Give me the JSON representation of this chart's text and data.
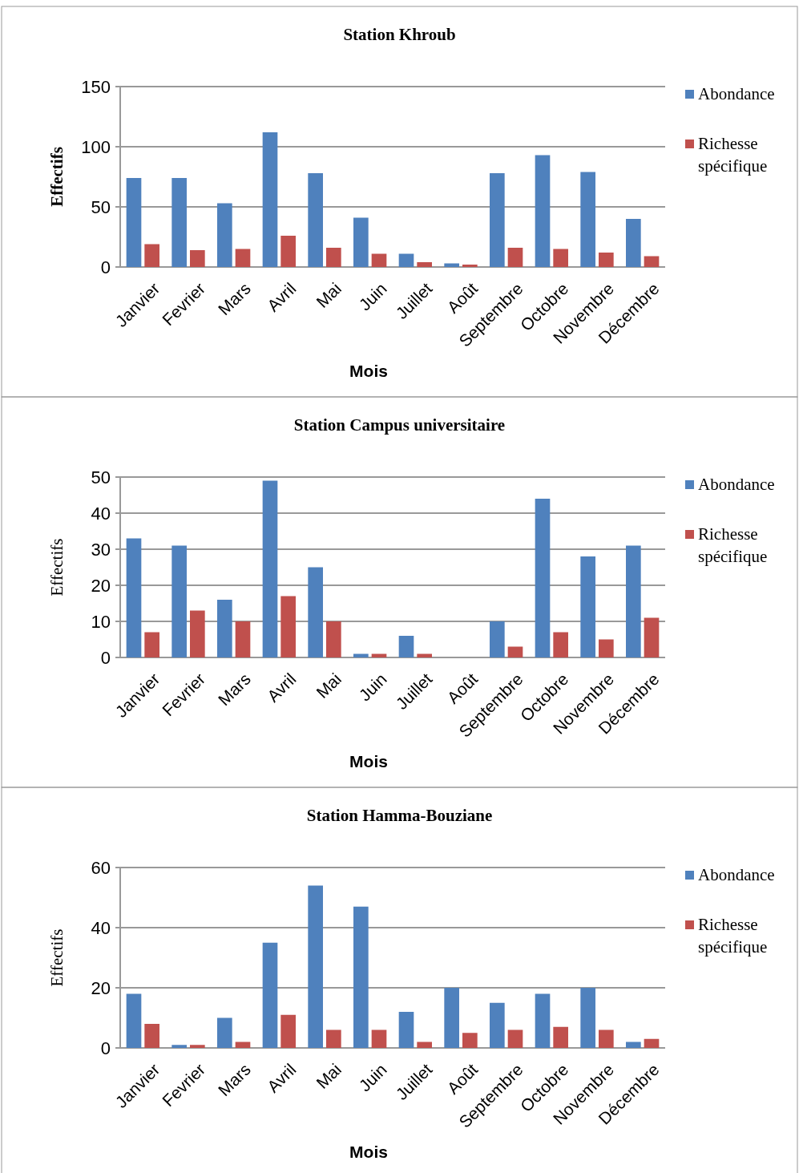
{
  "chart_data": [
    {
      "type": "bar",
      "title": "Station Khroub",
      "xlabel": "Mois",
      "ylabel": "Effectifs",
      "categories": [
        "Janvier",
        "Fevrier",
        "Mars",
        "Avril",
        "Mai",
        "Juin",
        "Juillet",
        "Août",
        "Septembre",
        "Octobre",
        "Novembre",
        "Décembre"
      ],
      "ylim": [
        0,
        150
      ],
      "yticks": [
        0,
        50,
        100,
        150
      ],
      "grid": "y",
      "legend": "right",
      "series": [
        {
          "name": "Abondance",
          "color": "#4f81bd",
          "values": [
            74,
            74,
            53,
            112,
            78,
            41,
            11,
            3,
            78,
            93,
            79,
            40
          ]
        },
        {
          "name": "Richesse spécifique",
          "color": "#c0504d",
          "values": [
            19,
            14,
            15,
            26,
            16,
            11,
            4,
            2,
            16,
            15,
            12,
            9
          ]
        }
      ]
    },
    {
      "type": "bar",
      "title": "Station Campus universitaire",
      "xlabel": "Mois",
      "ylabel": "Effectifs",
      "categories": [
        "Janvier",
        "Fevrier",
        "Mars",
        "Avril",
        "Mai",
        "Juin",
        "Juillet",
        "Août",
        "Septembre",
        "Octobre",
        "Novembre",
        "Décembre"
      ],
      "ylim": [
        0,
        50
      ],
      "yticks": [
        0,
        10,
        20,
        30,
        40,
        50
      ],
      "grid": "y",
      "legend": "right",
      "series": [
        {
          "name": "Abondance",
          "color": "#4f81bd",
          "values": [
            33,
            31,
            16,
            49,
            25,
            1,
            6,
            0,
            10,
            44,
            28,
            31
          ]
        },
        {
          "name": "Richesse spécifique",
          "color": "#c0504d",
          "values": [
            7,
            13,
            10,
            17,
            10,
            1,
            1,
            0,
            3,
            7,
            5,
            11
          ]
        }
      ]
    },
    {
      "type": "bar",
      "title": "Station Hamma-Bouziane",
      "xlabel": "Mois",
      "ylabel": "Effectifs",
      "categories": [
        "Janvier",
        "Fevrier",
        "Mars",
        "Avril",
        "Mai",
        "Juin",
        "Juillet",
        "Août",
        "Septembre",
        "Octobre",
        "Novembre",
        "Décembre"
      ],
      "ylim": [
        0,
        60
      ],
      "yticks": [
        0,
        20,
        40,
        60
      ],
      "grid": "y",
      "legend": "right",
      "series": [
        {
          "name": "Abondance",
          "color": "#4f81bd",
          "values": [
            18,
            1,
            10,
            35,
            54,
            47,
            12,
            20,
            15,
            18,
            20,
            2
          ]
        },
        {
          "name": "Richesse spécifique",
          "color": "#c0504d",
          "values": [
            8,
            1,
            2,
            11,
            6,
            6,
            2,
            5,
            6,
            7,
            6,
            3
          ]
        }
      ]
    }
  ]
}
